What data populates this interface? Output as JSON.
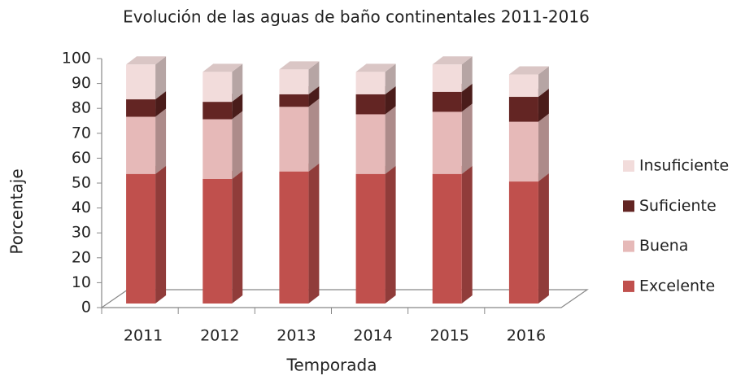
{
  "chart_data": {
    "type": "bar3d_stacked",
    "title": "Evolución de las aguas de baño continentales 2011-2016",
    "x_label": "Temporada",
    "y_label": "Porcentaje",
    "categories": [
      "2011",
      "2012",
      "2013",
      "2014",
      "2015",
      "2016"
    ],
    "series": [
      {
        "name": "Excelente",
        "color": "#c0504d",
        "values": [
          52,
          50,
          53,
          52,
          52,
          49
        ]
      },
      {
        "name": "Buena",
        "color": "#e6b9b8",
        "values": [
          23,
          24,
          26,
          24,
          25,
          24
        ]
      },
      {
        "name": "Suficiente",
        "color": "#632523",
        "values": [
          7,
          7,
          5,
          8,
          8,
          10
        ]
      },
      {
        "name": "Insuficiente",
        "color": "#f2dcdb",
        "values": [
          14,
          12,
          10,
          9,
          11,
          9
        ]
      }
    ],
    "ylim": [
      0,
      100
    ],
    "yticks": [
      0,
      10,
      20,
      30,
      40,
      50,
      60,
      70,
      80,
      90,
      100
    ],
    "legend": "right"
  }
}
